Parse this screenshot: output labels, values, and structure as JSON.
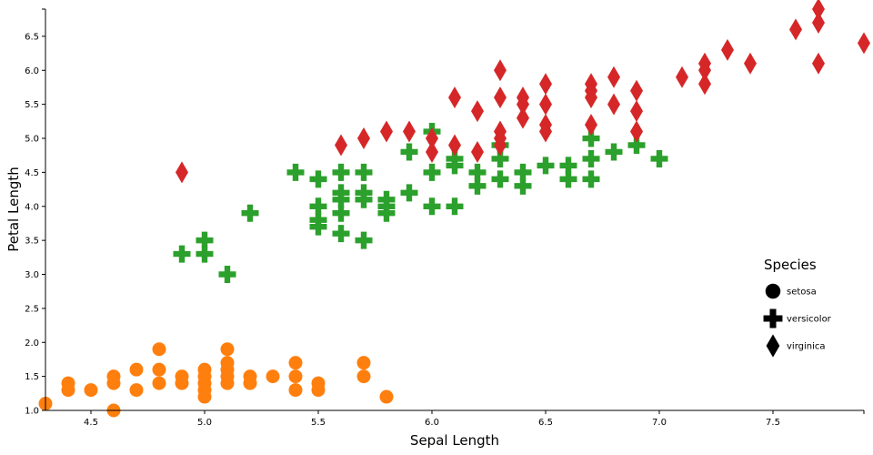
{
  "chart_data": {
    "type": "scatter",
    "title": "",
    "xlabel": "Sepal Length",
    "ylabel": "Petal Length",
    "xlim": [
      4.3,
      7.9
    ],
    "ylim": [
      1.0,
      6.9
    ],
    "xticks": [
      "4.5",
      "5.0",
      "5.5",
      "6.0",
      "6.5",
      "7.0",
      "7.5"
    ],
    "yticks": [
      "1.0",
      "1.5",
      "2.0",
      "2.5",
      "3.0",
      "3.5",
      "4.0",
      "4.5",
      "5.0",
      "5.5",
      "6.0",
      "6.5"
    ],
    "grid": false,
    "legend": {
      "title": "Species",
      "placement": "right",
      "items": [
        {
          "label": "setosa",
          "shape": "circle"
        },
        {
          "label": "versicolor",
          "shape": "cross"
        },
        {
          "label": "virginica",
          "shape": "diamond"
        }
      ]
    },
    "series": [
      {
        "name": "setosa",
        "color": "#ff7f0e",
        "shape": "circle",
        "points": [
          [
            4.3,
            1.1
          ],
          [
            4.4,
            1.4
          ],
          [
            4.4,
            1.3
          ],
          [
            4.5,
            1.3
          ],
          [
            4.6,
            1.5
          ],
          [
            4.6,
            1.4
          ],
          [
            4.6,
            1.0
          ],
          [
            4.7,
            1.6
          ],
          [
            4.7,
            1.3
          ],
          [
            4.8,
            1.9
          ],
          [
            4.8,
            1.6
          ],
          [
            4.8,
            1.4
          ],
          [
            4.9,
            1.5
          ],
          [
            4.9,
            1.4
          ],
          [
            5.0,
            1.6
          ],
          [
            5.0,
            1.5
          ],
          [
            5.0,
            1.4
          ],
          [
            5.0,
            1.3
          ],
          [
            5.0,
            1.2
          ],
          [
            5.1,
            1.9
          ],
          [
            5.1,
            1.7
          ],
          [
            5.1,
            1.6
          ],
          [
            5.1,
            1.5
          ],
          [
            5.1,
            1.4
          ],
          [
            5.2,
            1.5
          ],
          [
            5.2,
            1.4
          ],
          [
            5.3,
            1.5
          ],
          [
            5.4,
            1.7
          ],
          [
            5.4,
            1.5
          ],
          [
            5.4,
            1.3
          ],
          [
            5.5,
            1.4
          ],
          [
            5.5,
            1.3
          ],
          [
            5.7,
            1.7
          ],
          [
            5.7,
            1.5
          ],
          [
            5.8,
            1.2
          ]
        ]
      },
      {
        "name": "versicolor",
        "color": "#2ca02c",
        "shape": "cross",
        "points": [
          [
            4.9,
            3.3
          ],
          [
            5.0,
            3.5
          ],
          [
            5.0,
            3.3
          ],
          [
            5.1,
            3.0
          ],
          [
            5.2,
            3.9
          ],
          [
            5.4,
            4.5
          ],
          [
            5.5,
            4.4
          ],
          [
            5.5,
            4.0
          ],
          [
            5.5,
            3.8
          ],
          [
            5.5,
            3.7
          ],
          [
            5.6,
            4.5
          ],
          [
            5.6,
            4.2
          ],
          [
            5.6,
            4.1
          ],
          [
            5.6,
            3.9
          ],
          [
            5.6,
            3.6
          ],
          [
            5.7,
            4.5
          ],
          [
            5.7,
            4.2
          ],
          [
            5.7,
            4.1
          ],
          [
            5.7,
            3.5
          ],
          [
            5.8,
            4.1
          ],
          [
            5.8,
            4.0
          ],
          [
            5.8,
            3.9
          ],
          [
            5.9,
            4.8
          ],
          [
            5.9,
            4.2
          ],
          [
            6.0,
            5.1
          ],
          [
            6.0,
            4.5
          ],
          [
            6.0,
            4.0
          ],
          [
            6.1,
            4.7
          ],
          [
            6.1,
            4.6
          ],
          [
            6.1,
            4.0
          ],
          [
            6.2,
            4.5
          ],
          [
            6.2,
            4.3
          ],
          [
            6.3,
            4.9
          ],
          [
            6.3,
            4.7
          ],
          [
            6.3,
            4.4
          ],
          [
            6.4,
            4.5
          ],
          [
            6.4,
            4.3
          ],
          [
            6.5,
            4.6
          ],
          [
            6.6,
            4.6
          ],
          [
            6.6,
            4.4
          ],
          [
            6.7,
            5.0
          ],
          [
            6.7,
            4.7
          ],
          [
            6.7,
            4.4
          ],
          [
            6.8,
            4.8
          ],
          [
            6.9,
            4.9
          ],
          [
            7.0,
            4.7
          ]
        ]
      },
      {
        "name": "virginica",
        "color": "#d62728",
        "shape": "diamond",
        "points": [
          [
            4.9,
            4.5
          ],
          [
            5.6,
            4.9
          ],
          [
            5.7,
            5.0
          ],
          [
            5.8,
            5.1
          ],
          [
            5.9,
            5.1
          ],
          [
            6.0,
            5.0
          ],
          [
            6.0,
            4.8
          ],
          [
            6.1,
            5.6
          ],
          [
            6.1,
            4.9
          ],
          [
            6.2,
            5.4
          ],
          [
            6.2,
            4.8
          ],
          [
            6.3,
            6.0
          ],
          [
            6.3,
            5.6
          ],
          [
            6.3,
            5.1
          ],
          [
            6.3,
            5.0
          ],
          [
            6.3,
            4.9
          ],
          [
            6.4,
            5.6
          ],
          [
            6.4,
            5.5
          ],
          [
            6.4,
            5.3
          ],
          [
            6.5,
            5.8
          ],
          [
            6.5,
            5.5
          ],
          [
            6.5,
            5.2
          ],
          [
            6.5,
            5.1
          ],
          [
            6.7,
            5.8
          ],
          [
            6.7,
            5.7
          ],
          [
            6.7,
            5.6
          ],
          [
            6.7,
            5.2
          ],
          [
            6.8,
            5.9
          ],
          [
            6.8,
            5.5
          ],
          [
            6.9,
            5.7
          ],
          [
            6.9,
            5.4
          ],
          [
            6.9,
            5.1
          ],
          [
            7.1,
            5.9
          ],
          [
            7.2,
            6.1
          ],
          [
            7.2,
            6.0
          ],
          [
            7.2,
            5.8
          ],
          [
            7.3,
            6.3
          ],
          [
            7.4,
            6.1
          ],
          [
            7.6,
            6.6
          ],
          [
            7.7,
            6.9
          ],
          [
            7.7,
            6.7
          ],
          [
            7.7,
            6.1
          ],
          [
            7.9,
            6.4
          ]
        ]
      }
    ]
  }
}
